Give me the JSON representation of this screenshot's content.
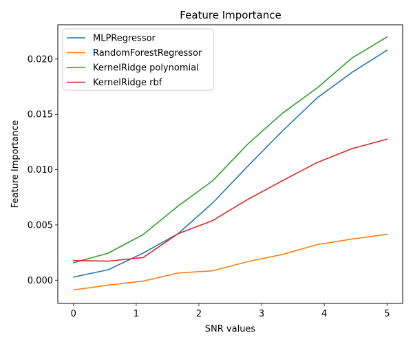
{
  "chart_data": {
    "type": "line",
    "title": "Feature Importance",
    "xlabel": "SNR values",
    "ylabel": "Feature Importance",
    "xlim": [
      -0.25,
      5.25
    ],
    "ylim": [
      -0.0021,
      0.0231
    ],
    "x_ticks": [
      0,
      1,
      2,
      3,
      4,
      5
    ],
    "x_tick_labels": [
      "0",
      "1",
      "2",
      "3",
      "4",
      "5"
    ],
    "y_ticks": [
      0.0,
      0.005,
      0.01,
      0.015,
      0.02
    ],
    "y_tick_labels": [
      "0.000",
      "0.005",
      "0.010",
      "0.015",
      "0.020"
    ],
    "grid": false,
    "legend_position": "top-left",
    "x": [
      0,
      0.556,
      1.111,
      1.667,
      2.222,
      2.778,
      3.333,
      3.889,
      4.444,
      5.0
    ],
    "series": [
      {
        "name": "MLPRegressor",
        "color": "#1f77b4",
        "values": [
          0.00028,
          0.00095,
          0.00245,
          0.0042,
          0.007,
          0.0103,
          0.0135,
          0.0165,
          0.0188,
          0.0208
        ]
      },
      {
        "name": "RandomForestRegressor",
        "color": "#ff7f0e",
        "values": [
          -0.00088,
          -0.00045,
          -8e-05,
          0.00065,
          0.00085,
          0.00168,
          0.00233,
          0.00322,
          0.00372,
          0.00415
        ]
      },
      {
        "name": "KernelRidge polynomial",
        "color": "#2ca02c",
        "values": [
          0.00158,
          0.00245,
          0.00413,
          0.0067,
          0.009,
          0.0123,
          0.0151,
          0.0174,
          0.0201,
          0.022
        ]
      },
      {
        "name": "KernelRidge rbf",
        "color": "#d62728",
        "values": [
          0.00178,
          0.00172,
          0.00205,
          0.0042,
          0.0054,
          0.0073,
          0.009,
          0.01065,
          0.0119,
          0.01275
        ]
      }
    ]
  }
}
